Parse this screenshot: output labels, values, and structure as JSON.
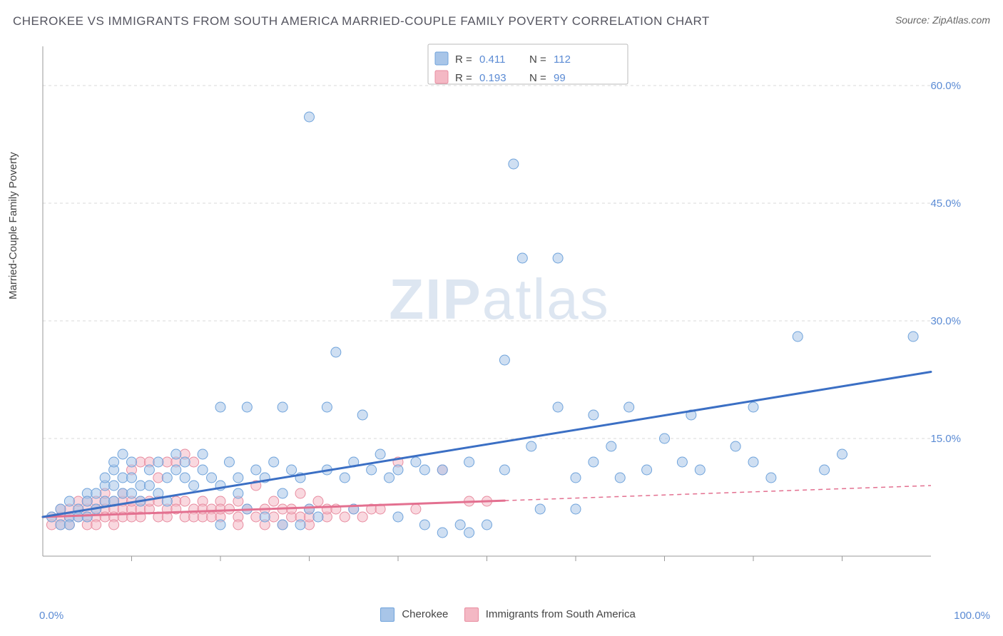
{
  "title": "CHEROKEE VS IMMIGRANTS FROM SOUTH AMERICA MARRIED-COUPLE FAMILY POVERTY CORRELATION CHART",
  "source_label": "Source:",
  "source_name": "ZipAtlas.com",
  "y_axis_label": "Married-Couple Family Poverty",
  "watermark": {
    "bold": "ZIP",
    "light": "atlas"
  },
  "chart": {
    "type": "scatter",
    "xlim": [
      0,
      100
    ],
    "ylim": [
      0,
      65
    ],
    "x_ticks": [
      0,
      100
    ],
    "x_tick_labels": [
      "0.0%",
      "100.0%"
    ],
    "x_minor_ticks": [
      10,
      20,
      30,
      40,
      50,
      60,
      70,
      80,
      90
    ],
    "y_ticks": [
      15,
      30,
      45,
      60
    ],
    "y_tick_labels": [
      "15.0%",
      "30.0%",
      "45.0%",
      "60.0%"
    ],
    "y_tick_color": "#5b8bd4",
    "x_tick_color": "#5b8bd4",
    "grid_color": "#d9d9d9",
    "grid_dash": "4,4",
    "axis_color": "#999999",
    "background_color": "#ffffff",
    "marker_radius": 7,
    "marker_stroke_width": 1,
    "line_width_solid": 3,
    "line_width_dashed": 1.5
  },
  "series": [
    {
      "id": "cherokee",
      "label": "Cherokee",
      "fill_color": "#a8c5e8",
      "stroke_color": "#6fa3db",
      "line_color": "#3b6fc4",
      "fill_opacity": 0.55,
      "R": "0.411",
      "N": "112",
      "regression": {
        "x1": 0,
        "y1": 5.0,
        "x2": 100,
        "y2": 23.5,
        "x_solid_end": 100
      },
      "points": [
        [
          1,
          5
        ],
        [
          2,
          4
        ],
        [
          2,
          6
        ],
        [
          3,
          5
        ],
        [
          3,
          7
        ],
        [
          3,
          4
        ],
        [
          4,
          6
        ],
        [
          4,
          5
        ],
        [
          5,
          8
        ],
        [
          5,
          7
        ],
        [
          5,
          5
        ],
        [
          6,
          8
        ],
        [
          6,
          6
        ],
        [
          7,
          9
        ],
        [
          7,
          10
        ],
        [
          7,
          7
        ],
        [
          8,
          9
        ],
        [
          8,
          11
        ],
        [
          8,
          7
        ],
        [
          8,
          12
        ],
        [
          9,
          13
        ],
        [
          9,
          10
        ],
        [
          9,
          8
        ],
        [
          10,
          10
        ],
        [
          10,
          12
        ],
        [
          10,
          8
        ],
        [
          11,
          9
        ],
        [
          11,
          7
        ],
        [
          12,
          11
        ],
        [
          12,
          9
        ],
        [
          13,
          12
        ],
        [
          13,
          8
        ],
        [
          14,
          10
        ],
        [
          14,
          7
        ],
        [
          15,
          11
        ],
        [
          15,
          13
        ],
        [
          16,
          10
        ],
        [
          16,
          12
        ],
        [
          17,
          9
        ],
        [
          18,
          11
        ],
        [
          18,
          13
        ],
        [
          19,
          10
        ],
        [
          20,
          19
        ],
        [
          20,
          9
        ],
        [
          20,
          4
        ],
        [
          21,
          12
        ],
        [
          22,
          10
        ],
        [
          22,
          8
        ],
        [
          23,
          19
        ],
        [
          23,
          6
        ],
        [
          24,
          11
        ],
        [
          25,
          10
        ],
        [
          25,
          5
        ],
        [
          26,
          12
        ],
        [
          27,
          19
        ],
        [
          27,
          4
        ],
        [
          27,
          8
        ],
        [
          28,
          11
        ],
        [
          29,
          10
        ],
        [
          29,
          4
        ],
        [
          30,
          6
        ],
        [
          30,
          56
        ],
        [
          31,
          5
        ],
        [
          32,
          19
        ],
        [
          32,
          11
        ],
        [
          33,
          26
        ],
        [
          34,
          10
        ],
        [
          35,
          6
        ],
        [
          35,
          12
        ],
        [
          36,
          18
        ],
        [
          37,
          11
        ],
        [
          38,
          13
        ],
        [
          39,
          10
        ],
        [
          40,
          11
        ],
        [
          40,
          5
        ],
        [
          42,
          12
        ],
        [
          43,
          4
        ],
        [
          43,
          11
        ],
        [
          45,
          11
        ],
        [
          45,
          3
        ],
        [
          47,
          4
        ],
        [
          48,
          12
        ],
        [
          48,
          3
        ],
        [
          50,
          4
        ],
        [
          52,
          25
        ],
        [
          52,
          11
        ],
        [
          53,
          50
        ],
        [
          54,
          38
        ],
        [
          55,
          14
        ],
        [
          56,
          6
        ],
        [
          58,
          38
        ],
        [
          58,
          19
        ],
        [
          60,
          10
        ],
        [
          60,
          6
        ],
        [
          62,
          18
        ],
        [
          62,
          12
        ],
        [
          64,
          14
        ],
        [
          65,
          10
        ],
        [
          66,
          19
        ],
        [
          68,
          11
        ],
        [
          70,
          15
        ],
        [
          72,
          12
        ],
        [
          73,
          18
        ],
        [
          74,
          11
        ],
        [
          78,
          14
        ],
        [
          80,
          19
        ],
        [
          80,
          12
        ],
        [
          82,
          10
        ],
        [
          85,
          28
        ],
        [
          88,
          11
        ],
        [
          90,
          13
        ],
        [
          98,
          28
        ]
      ]
    },
    {
      "id": "immigrants-sa",
      "label": "Immigrants from South America",
      "fill_color": "#f4b8c4",
      "stroke_color": "#e88ca0",
      "line_color": "#e37090",
      "fill_opacity": 0.55,
      "R": "0.193",
      "N": "99",
      "regression": {
        "x1": 0,
        "y1": 5.0,
        "x2": 100,
        "y2": 9.0,
        "x_solid_end": 52
      },
      "points": [
        [
          1,
          4
        ],
        [
          1,
          5
        ],
        [
          2,
          5
        ],
        [
          2,
          6
        ],
        [
          2,
          4
        ],
        [
          3,
          5
        ],
        [
          3,
          6
        ],
        [
          3,
          4
        ],
        [
          4,
          6
        ],
        [
          4,
          5
        ],
        [
          4,
          7
        ],
        [
          5,
          6
        ],
        [
          5,
          5
        ],
        [
          5,
          4
        ],
        [
          5,
          7
        ],
        [
          6,
          7
        ],
        [
          6,
          5
        ],
        [
          6,
          6
        ],
        [
          6,
          4
        ],
        [
          7,
          7
        ],
        [
          7,
          6
        ],
        [
          7,
          5
        ],
        [
          7,
          8
        ],
        [
          8,
          6
        ],
        [
          8,
          7
        ],
        [
          8,
          5
        ],
        [
          8,
          4
        ],
        [
          9,
          7
        ],
        [
          9,
          6
        ],
        [
          9,
          5
        ],
        [
          9,
          8
        ],
        [
          10,
          6
        ],
        [
          10,
          7
        ],
        [
          10,
          5
        ],
        [
          10,
          11
        ],
        [
          11,
          7
        ],
        [
          11,
          6
        ],
        [
          11,
          5
        ],
        [
          11,
          12
        ],
        [
          12,
          6
        ],
        [
          12,
          7
        ],
        [
          12,
          12
        ],
        [
          13,
          7
        ],
        [
          13,
          5
        ],
        [
          13,
          10
        ],
        [
          14,
          6
        ],
        [
          14,
          12
        ],
        [
          14,
          5
        ],
        [
          15,
          7
        ],
        [
          15,
          6
        ],
        [
          15,
          12
        ],
        [
          16,
          13
        ],
        [
          16,
          5
        ],
        [
          16,
          7
        ],
        [
          17,
          6
        ],
        [
          17,
          5
        ],
        [
          17,
          12
        ],
        [
          18,
          7
        ],
        [
          18,
          5
        ],
        [
          18,
          6
        ],
        [
          19,
          6
        ],
        [
          19,
          5
        ],
        [
          20,
          7
        ],
        [
          20,
          5
        ],
        [
          20,
          6
        ],
        [
          21,
          6
        ],
        [
          22,
          5
        ],
        [
          22,
          4
        ],
        [
          22,
          7
        ],
        [
          23,
          6
        ],
        [
          24,
          5
        ],
        [
          24,
          9
        ],
        [
          25,
          6
        ],
        [
          25,
          4
        ],
        [
          26,
          5
        ],
        [
          26,
          7
        ],
        [
          27,
          6
        ],
        [
          27,
          4
        ],
        [
          28,
          5
        ],
        [
          28,
          6
        ],
        [
          29,
          5
        ],
        [
          29,
          8
        ],
        [
          30,
          6
        ],
        [
          30,
          4
        ],
        [
          30,
          5
        ],
        [
          31,
          7
        ],
        [
          32,
          5
        ],
        [
          32,
          6
        ],
        [
          33,
          6
        ],
        [
          34,
          5
        ],
        [
          35,
          6
        ],
        [
          36,
          5
        ],
        [
          37,
          6
        ],
        [
          38,
          6
        ],
        [
          40,
          12
        ],
        [
          42,
          6
        ],
        [
          45,
          11
        ],
        [
          48,
          7
        ],
        [
          50,
          7
        ]
      ]
    }
  ],
  "stats_legend": {
    "border_color": "#bbbbbb",
    "bg_color": "#ffffff",
    "text_color": "#444444",
    "value_color": "#5b8bd4",
    "R_label": "R =",
    "N_label": "N ="
  },
  "bottom_legend": {
    "text_color": "#444444"
  }
}
